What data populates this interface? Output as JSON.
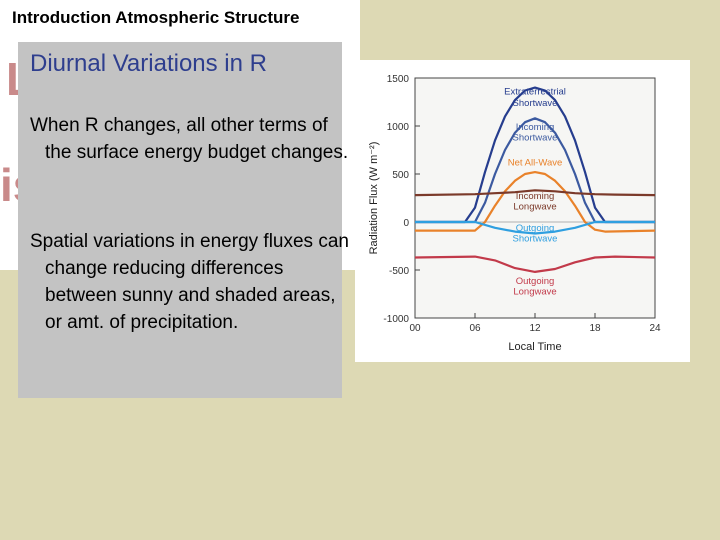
{
  "slide": {
    "title": "Introduction Atmospheric Structure"
  },
  "panel": {
    "heading": "Diurnal Variations in R",
    "paragraphs": [
      "When R changes, all other terms of the surface energy budget changes.",
      "Spatial variations in energy fluxes can change reducing differences between sunny and shaded areas, or amt. of precipitation."
    ]
  },
  "colors": {
    "background": "#ddd9b4",
    "panel": "#c3c3c3",
    "heading": "#2e3e8e",
    "ghost_text": "#c98a8a"
  },
  "chart_data": {
    "type": "line",
    "xlabel": "Local Time",
    "ylabel": "Radiation Flux (W m⁻²)",
    "xlim": [
      0,
      24
    ],
    "ylim": [
      -1000,
      1500
    ],
    "xticks": [
      "00",
      "06",
      "12",
      "18",
      "24"
    ],
    "yticks": [
      "1500",
      "1000",
      "500",
      "0",
      "-500",
      "-1000"
    ],
    "grid": false,
    "series": [
      {
        "name": "Extraterrestrial Shortwave",
        "color": "#263d8e",
        "x": [
          0,
          5,
          6,
          7,
          8,
          9,
          10,
          11,
          12,
          13,
          14,
          15,
          16,
          17,
          18,
          19,
          24
        ],
        "y": [
          0,
          0,
          150,
          520,
          850,
          1100,
          1270,
          1370,
          1400,
          1370,
          1270,
          1100,
          850,
          520,
          150,
          0,
          0
        ]
      },
      {
        "name": "Incoming Shortwave",
        "color": "#3c5aa0",
        "x": [
          0,
          6,
          7,
          8,
          9,
          10,
          11,
          12,
          13,
          14,
          15,
          16,
          17,
          18,
          24
        ],
        "y": [
          0,
          0,
          200,
          500,
          750,
          930,
          1040,
          1080,
          1040,
          930,
          750,
          500,
          200,
          0,
          0
        ]
      },
      {
        "name": "Net All-Wave",
        "color": "#e9822a",
        "x": [
          0,
          6,
          7,
          8,
          9,
          10,
          11,
          12,
          13,
          14,
          15,
          16,
          17,
          18,
          19,
          24
        ],
        "y": [
          -90,
          -90,
          0,
          170,
          320,
          430,
          500,
          520,
          500,
          430,
          320,
          170,
          0,
          -80,
          -100,
          -90
        ]
      },
      {
        "name": "Incoming Longwave",
        "color": "#7b3a2a",
        "x": [
          0,
          6,
          8,
          10,
          12,
          14,
          16,
          18,
          20,
          24
        ],
        "y": [
          280,
          290,
          300,
          310,
          330,
          320,
          300,
          290,
          285,
          280
        ]
      },
      {
        "name": "Outgoing Shortwave",
        "color": "#2f9fe0",
        "x": [
          0,
          6,
          8,
          10,
          12,
          14,
          16,
          18,
          24
        ],
        "y": [
          0,
          0,
          -60,
          -100,
          -120,
          -100,
          -60,
          0,
          0
        ]
      },
      {
        "name": "Outgoing Longwave",
        "color": "#c23a4a",
        "x": [
          0,
          6,
          8,
          10,
          12,
          14,
          16,
          18,
          20,
          24
        ],
        "y": [
          -370,
          -360,
          -400,
          -480,
          -520,
          -490,
          -420,
          -370,
          -360,
          -370
        ]
      }
    ]
  }
}
